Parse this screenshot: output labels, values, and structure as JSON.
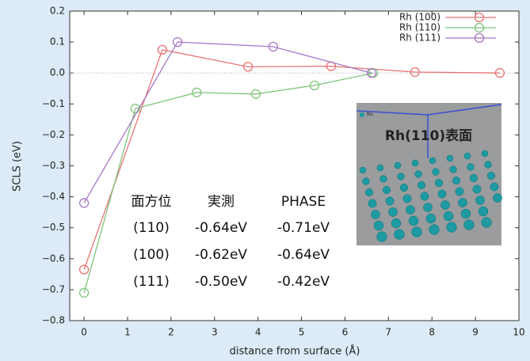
{
  "chart_data": {
    "type": "line",
    "x_label": "distance from surface (Å)",
    "y_label": "SCLS (eV)",
    "xlim": [
      -0.33,
      10
    ],
    "ylim": [
      -0.8,
      0.2
    ],
    "xticks": [
      0,
      1,
      2,
      3,
      4,
      5,
      6,
      7,
      8,
      9,
      10
    ],
    "yticks": [
      {
        "value": 0.2,
        "label": "0.2"
      },
      {
        "value": 0.1,
        "label": "0.1"
      },
      {
        "value": 0,
        "label": "0.0"
      },
      {
        "value": -0.1,
        "label": "−0.1"
      },
      {
        "value": -0.2,
        "label": "−0.2"
      },
      {
        "value": -0.3,
        "label": "−0.3"
      },
      {
        "value": -0.4,
        "label": "−0.4"
      },
      {
        "value": -0.5,
        "label": "−0.5"
      },
      {
        "value": -0.6,
        "label": "−0.6"
      },
      {
        "value": -0.7,
        "label": "−0.7"
      },
      {
        "value": -0.8,
        "label": "−0.8"
      }
    ],
    "legend": "upper right",
    "series": [
      {
        "name": "Rh (100)",
        "color": "#e87474",
        "x": [
          0,
          1.8,
          3.77,
          5.68,
          7.61,
          9.56
        ],
        "values": [
          -0.635,
          0.075,
          0.02,
          0.022,
          0.003,
          0
        ]
      },
      {
        "name": "Rh (110)",
        "color": "#80c47c",
        "x": [
          0,
          1.18,
          2.59,
          3.95,
          5.3,
          6.65
        ],
        "values": [
          -0.71,
          -0.115,
          -0.063,
          -0.068,
          -0.04,
          0
        ]
      },
      {
        "name": "Rh (111)",
        "color": "#a878c8",
        "x": [
          0,
          2.15,
          4.35,
          6.61
        ],
        "values": [
          -0.42,
          0.1,
          0.085,
          0
        ]
      }
    ],
    "table": {
      "header": [
        "面方位",
        "実測",
        "PHASE"
      ],
      "rows": [
        [
          "(110)",
          "-0.64eV",
          "-0.71eV"
        ],
        [
          "(100)",
          "-0.62eV",
          "-0.64eV"
        ],
        [
          "(111)",
          "-0.50eV",
          "-0.42eV"
        ]
      ]
    },
    "inset": {
      "title": "Rh(110)表面",
      "legend": "Rh"
    }
  }
}
